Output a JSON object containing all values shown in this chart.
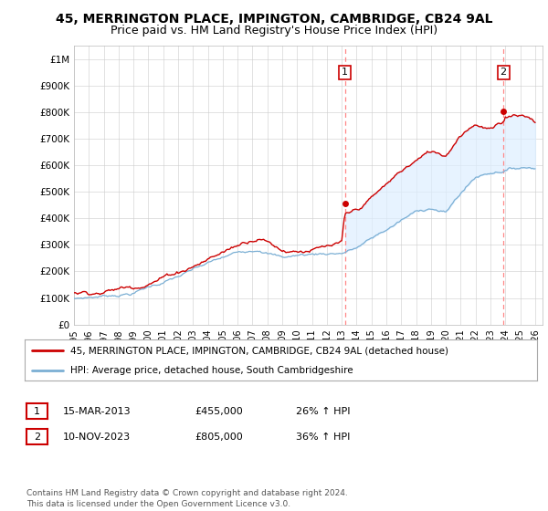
{
  "title": "45, MERRINGTON PLACE, IMPINGTON, CAMBRIDGE, CB24 9AL",
  "subtitle": "Price paid vs. HM Land Registry's House Price Index (HPI)",
  "ylabel_ticks": [
    "£0",
    "£100K",
    "£200K",
    "£300K",
    "£400K",
    "£500K",
    "£600K",
    "£700K",
    "£800K",
    "£900K",
    "£1M"
  ],
  "ytick_values": [
    0,
    100000,
    200000,
    300000,
    400000,
    500000,
    600000,
    700000,
    800000,
    900000,
    1000000
  ],
  "ylim": [
    0,
    1050000
  ],
  "xlim_start": 1995.0,
  "xlim_end": 2026.5,
  "xtick_years": [
    1995,
    1996,
    1997,
    1998,
    1999,
    2000,
    2001,
    2002,
    2003,
    2004,
    2005,
    2006,
    2007,
    2008,
    2009,
    2010,
    2011,
    2012,
    2013,
    2014,
    2015,
    2016,
    2017,
    2018,
    2019,
    2020,
    2021,
    2022,
    2023,
    2024,
    2025,
    2026
  ],
  "hpi_color": "#7bafd4",
  "hpi_fill_color": "#ddeeff",
  "price_color": "#cc0000",
  "dashed_color": "#ff8888",
  "marker1_year": 2013.21,
  "marker1_value": 455000,
  "marker2_year": 2023.87,
  "marker2_value": 805000,
  "annotation1_label": "1",
  "annotation2_label": "2",
  "legend_line1": "45, MERRINGTON PLACE, IMPINGTON, CAMBRIDGE, CB24 9AL (detached house)",
  "legend_line2": "HPI: Average price, detached house, South Cambridgeshire",
  "table_row1": [
    "1",
    "15-MAR-2013",
    "£455,000",
    "26% ↑ HPI"
  ],
  "table_row2": [
    "2",
    "10-NOV-2023",
    "£805,000",
    "36% ↑ HPI"
  ],
  "footnote": "Contains HM Land Registry data © Crown copyright and database right 2024.\nThis data is licensed under the Open Government Licence v3.0.",
  "background_color": "#ffffff",
  "grid_color": "#cccccc",
  "title_fontsize": 10,
  "subtitle_fontsize": 9
}
